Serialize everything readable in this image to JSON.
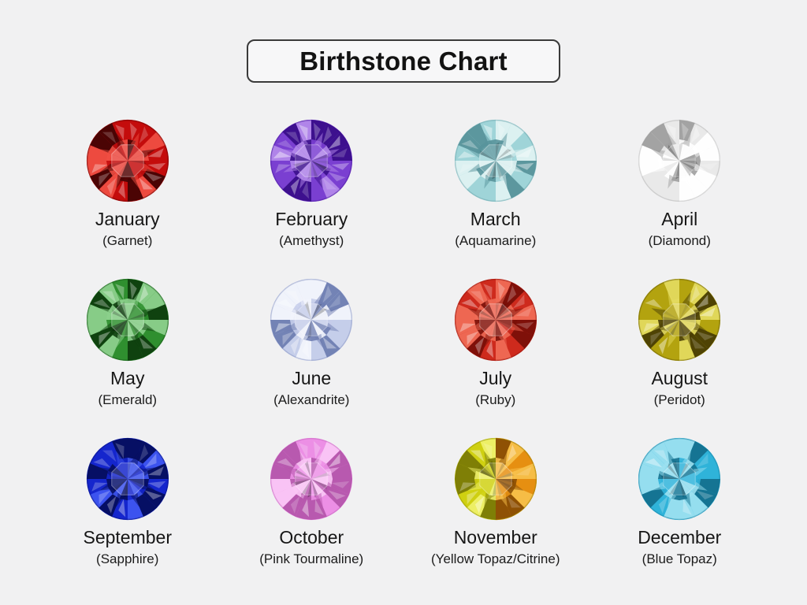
{
  "title": "Birthstone Chart",
  "page": {
    "background": "#f1f1f2",
    "title_border_color": "#3a3a3a",
    "title_fill": "#f7f7f8",
    "text_color": "#161616"
  },
  "grid": {
    "items": [
      {
        "month": "January",
        "stone": "(Garnet)",
        "colors": {
          "base": "#c40d0d",
          "dark": "#450404",
          "light": "#ef4e42"
        }
      },
      {
        "month": "February",
        "stone": "(Amethyst)",
        "colors": {
          "base": "#7a3fd1",
          "dark": "#3a0e8a",
          "light": "#b388ea"
        }
      },
      {
        "month": "March",
        "stone": "(Aquamarine)",
        "colors": {
          "base": "#9fd4d8",
          "dark": "#58939b",
          "light": "#dff2f2"
        }
      },
      {
        "month": "April",
        "stone": "(Diamond)",
        "colors": {
          "base": "#e9e9e9",
          "dark": "#9f9f9f",
          "light": "#ffffff"
        }
      },
      {
        "month": "May",
        "stone": "(Emerald)",
        "colors": {
          "base": "#2f8f2f",
          "dark": "#0e3e0e",
          "light": "#8cd08c"
        }
      },
      {
        "month": "June",
        "stone": "(Alexandrite)",
        "colors": {
          "base": "#c5cdea",
          "dark": "#6f7eb2",
          "light": "#f2f4fc"
        }
      },
      {
        "month": "July",
        "stone": "(Ruby)",
        "colors": {
          "base": "#cd2a1e",
          "dark": "#7a0f08",
          "light": "#ef6a55"
        }
      },
      {
        "month": "August",
        "stone": "(Peridot)",
        "colors": {
          "base": "#b3a310",
          "dark": "#4a3e04",
          "light": "#e3da5e"
        }
      },
      {
        "month": "September",
        "stone": "(Sapphire)",
        "colors": {
          "base": "#1526cc",
          "dark": "#050e5e",
          "light": "#3e55f0"
        }
      },
      {
        "month": "October",
        "stone": "(Pink Tourmaline)",
        "colors": {
          "base": "#ec8fe5",
          "dark": "#b556ac",
          "light": "#fac6f5"
        }
      },
      {
        "month": "November",
        "stone": "(Yellow Topaz/Citrine)",
        "colors": {
          "base": "#cfd012",
          "dark": "#7a7a06",
          "light": "#eef06a"
        },
        "colors2": {
          "base": "#e68f12",
          "dark": "#8a4e04",
          "light": "#f7c04a"
        }
      },
      {
        "month": "December",
        "stone": "(Blue Topaz)",
        "colors": {
          "base": "#2fb3d9",
          "dark": "#14718f",
          "light": "#9be0f0"
        }
      }
    ]
  }
}
